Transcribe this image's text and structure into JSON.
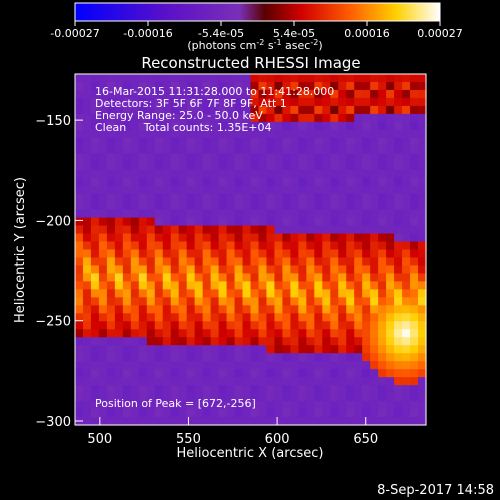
{
  "chart_data": {
    "type": "heatmap",
    "title": "Reconstructed RHESSI Image",
    "xlabel": "Heliocentric X (arcsec)",
    "ylabel": "Heliocentric Y (arcsec)",
    "xlim": [
      486,
      684
    ],
    "ylim": [
      -302,
      -127
    ],
    "xticks": [
      500,
      550,
      600,
      650
    ],
    "yticks": [
      -150,
      -200,
      -250,
      -300
    ],
    "xticklabels": [
      "500",
      "550",
      "600",
      "650"
    ],
    "yticklabels": [
      "−150",
      "−200",
      "−250",
      "−300"
    ],
    "colorbar": {
      "range": [
        -0.00027,
        0.00027
      ],
      "ticklabels": [
        "-0.00027",
        "-0.00016",
        "-5.4e-05",
        "5.4e-05",
        "0.00016",
        "0.00027"
      ],
      "unit_label": "(photons cm",
      "unit_sup1": "-2",
      "unit_mid": " s",
      "unit_sup2": "-1",
      "unit_end": " asec",
      "unit_sup3": "-2",
      "unit_close": ")",
      "colors": [
        "#0000ff",
        "#5000c0",
        "#7a2fb8",
        "#8c0000",
        "#e00000",
        "#ff7000",
        "#ffe000",
        "#ffffff"
      ]
    },
    "annotations": [
      "16-Mar-2015 11:31:28.000 to 11:41:28.000",
      "Detectors: 3F 5F 6F 7F 8F 9F, Att 1",
      "Energy Range: 25.0 - 50.0 keV",
      "Clean     Total counts: 1.35E+04"
    ],
    "peak_label": "Position of Peak = [672,-256]",
    "peak": [
      672,
      -256
    ],
    "sources": [
      {
        "x0": 578,
        "x1": 684,
        "y0": -155,
        "y1": -127,
        "intensity": 0.00012
      },
      {
        "x0": 486,
        "x1": 684,
        "y0": -262,
        "y1": -205,
        "intensity": 0.00022
      }
    ],
    "background_value": -6e-05
  },
  "footer": {
    "date": "8-Sep-2017 14:58"
  }
}
